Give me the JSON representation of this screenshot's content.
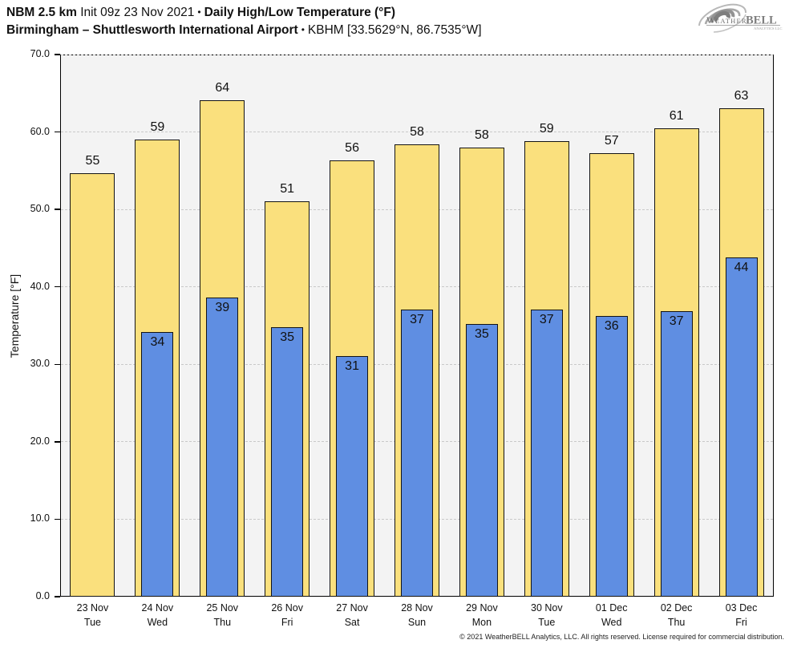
{
  "header": {
    "title_model": "NBM 2.5 km",
    "title_init": "Init 09z 23 Nov 2021",
    "title_sep": "•",
    "title_product": "Daily High/Low Temperature (°F)",
    "subtitle_location": "Birmingham – Shuttlesworth International Airport",
    "subtitle_sep": "•",
    "subtitle_station": "KBHM [33.5629°N, 86.7535°W]"
  },
  "logo": {
    "brand_weather": "Weather",
    "brand_bell": "BELL",
    "brand_sub": "Analytics LLC"
  },
  "footer": {
    "copyright": "© 2021 WeatherBELL Analytics, LLC. All rights reserved. License required for commercial distribution."
  },
  "chart_data": {
    "type": "bar",
    "title": "NBM 2.5 km Init 09z 23 Nov 2021 • Daily High/Low Temperature (°F)",
    "subtitle": "Birmingham – Shuttlesworth International Airport • KBHM [33.5629°N, 86.7535°W]",
    "xlabel": "",
    "ylabel": "Temperature [°F]",
    "ylim": [
      0,
      70
    ],
    "yticks": [
      0,
      10,
      20,
      30,
      40,
      50,
      60,
      70
    ],
    "ytick_labels": [
      "0.0",
      "10.0",
      "20.0",
      "30.0",
      "40.0",
      "50.0",
      "60.0",
      "70.0"
    ],
    "grid": "horizontal dashed",
    "legend": "none",
    "categories": [
      {
        "date": "23 Nov",
        "day": "Tue"
      },
      {
        "date": "24 Nov",
        "day": "Wed"
      },
      {
        "date": "25 Nov",
        "day": "Thu"
      },
      {
        "date": "26 Nov",
        "day": "Fri"
      },
      {
        "date": "27 Nov",
        "day": "Sat"
      },
      {
        "date": "28 Nov",
        "day": "Sun"
      },
      {
        "date": "29 Nov",
        "day": "Mon"
      },
      {
        "date": "30 Nov",
        "day": "Tue"
      },
      {
        "date": "01 Dec",
        "day": "Wed"
      },
      {
        "date": "02 Dec",
        "day": "Thu"
      },
      {
        "date": "03 Dec",
        "day": "Fri"
      }
    ],
    "series": [
      {
        "name": "High",
        "color": "#FAE07D",
        "values": [
          54.7,
          59.0,
          64.1,
          51.1,
          56.3,
          58.4,
          58.0,
          58.8,
          57.3,
          60.5,
          63.1
        ],
        "labels": [
          "55",
          "59",
          "64",
          "51",
          "56",
          "58",
          "58",
          "59",
          "57",
          "61",
          "63"
        ]
      },
      {
        "name": "Low",
        "color": "#5F8EE2",
        "values": [
          null,
          34.2,
          38.6,
          34.8,
          31.1,
          37.1,
          35.2,
          37.1,
          36.2,
          36.9,
          43.8
        ],
        "labels": [
          null,
          "34",
          "39",
          "35",
          "31",
          "37",
          "35",
          "37",
          "36",
          "37",
          "44"
        ]
      }
    ]
  },
  "colors": {
    "high_bar": "#FAE07D",
    "low_bar": "#5F8EE2",
    "bar_border": "#141414",
    "plot_background": "#F3F3F3",
    "gridline": "#C9C9C9",
    "axis": "#000000"
  }
}
